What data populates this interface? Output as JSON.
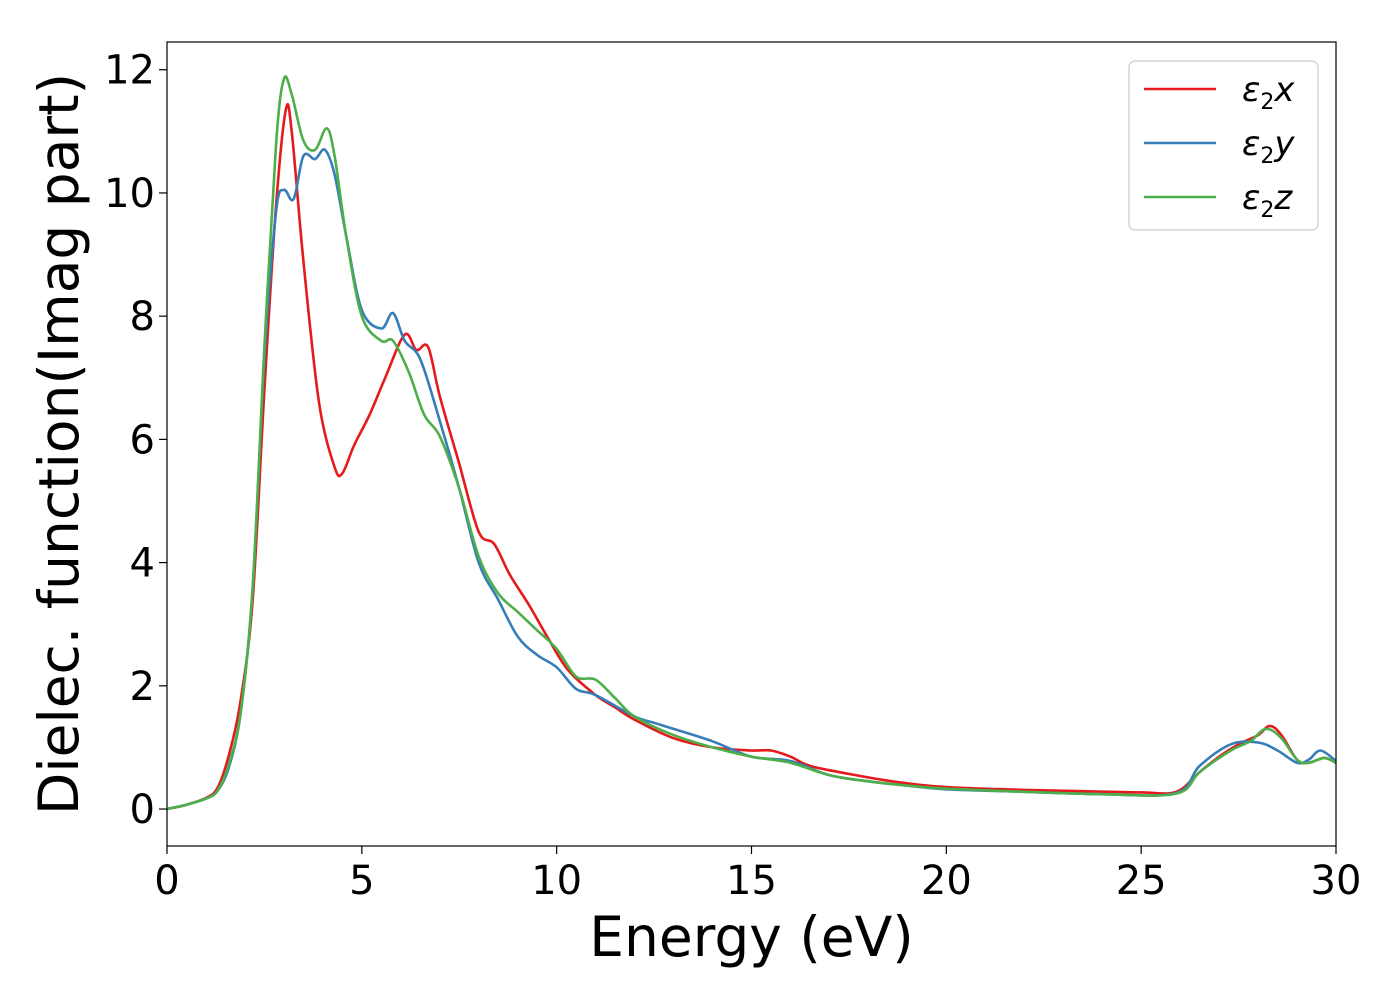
{
  "chart_data": {
    "type": "line",
    "title": "",
    "xlabel": "Energy (eV)",
    "ylabel": "Dielec. function(Imag part)",
    "xlim": [
      0,
      30
    ],
    "ylim": [
      -0.6,
      12.45
    ],
    "xticks": [
      0,
      5,
      10,
      15,
      20,
      25,
      30
    ],
    "yticks": [
      0,
      2,
      4,
      6,
      8,
      10,
      12
    ],
    "xtick_labels": [
      "0",
      "5",
      "10",
      "15",
      "20",
      "25",
      "30"
    ],
    "ytick_labels": [
      "0",
      "2",
      "4",
      "6",
      "8",
      "10",
      "12"
    ],
    "grid": false,
    "legend_position": "top-right",
    "series": [
      {
        "name": "ε2x",
        "legend": {
          "base": "ε",
          "sub": "2",
          "var": "x"
        },
        "color": "#e41a1c",
        "points": [
          [
            0,
            0
          ],
          [
            0.5,
            0.07
          ],
          [
            1.0,
            0.18
          ],
          [
            1.3,
            0.35
          ],
          [
            1.6,
            0.9
          ],
          [
            1.9,
            1.8
          ],
          [
            2.2,
            3.4
          ],
          [
            2.5,
            6.8
          ],
          [
            2.8,
            9.8
          ],
          [
            3.05,
            11.35
          ],
          [
            3.2,
            11.0
          ],
          [
            3.5,
            8.9
          ],
          [
            3.9,
            6.6
          ],
          [
            4.3,
            5.55
          ],
          [
            4.5,
            5.45
          ],
          [
            4.8,
            5.9
          ],
          [
            5.2,
            6.4
          ],
          [
            5.6,
            7.0
          ],
          [
            6.1,
            7.7
          ],
          [
            6.4,
            7.45
          ],
          [
            6.7,
            7.5
          ],
          [
            7.0,
            6.7
          ],
          [
            7.5,
            5.6
          ],
          [
            8.0,
            4.5
          ],
          [
            8.4,
            4.3
          ],
          [
            8.8,
            3.8
          ],
          [
            9.3,
            3.3
          ],
          [
            9.8,
            2.75
          ],
          [
            10.3,
            2.25
          ],
          [
            11.0,
            1.85
          ],
          [
            11.5,
            1.65
          ],
          [
            12.0,
            1.45
          ],
          [
            13.0,
            1.15
          ],
          [
            14.0,
            1.0
          ],
          [
            15.0,
            0.95
          ],
          [
            15.5,
            0.95
          ],
          [
            16.0,
            0.85
          ],
          [
            16.5,
            0.7
          ],
          [
            17.5,
            0.57
          ],
          [
            18.5,
            0.46
          ],
          [
            19.5,
            0.38
          ],
          [
            20.5,
            0.34
          ],
          [
            22.0,
            0.31
          ],
          [
            23.5,
            0.29
          ],
          [
            25.0,
            0.27
          ],
          [
            25.9,
            0.28
          ],
          [
            26.5,
            0.6
          ],
          [
            27.0,
            0.85
          ],
          [
            27.5,
            1.05
          ],
          [
            28.0,
            1.2
          ],
          [
            28.3,
            1.35
          ],
          [
            28.6,
            1.2
          ],
          [
            29.0,
            0.8
          ],
          [
            29.3,
            0.75
          ],
          [
            29.7,
            0.83
          ],
          [
            30.0,
            0.75
          ]
        ]
      },
      {
        "name": "ε2y",
        "legend": {
          "base": "ε",
          "sub": "2",
          "var": "y"
        },
        "color": "#377eb8",
        "points": [
          [
            0,
            0
          ],
          [
            0.5,
            0.07
          ],
          [
            1.0,
            0.17
          ],
          [
            1.3,
            0.3
          ],
          [
            1.6,
            0.7
          ],
          [
            1.9,
            1.6
          ],
          [
            2.2,
            3.6
          ],
          [
            2.5,
            7.3
          ],
          [
            2.8,
            9.7
          ],
          [
            3.0,
            10.05
          ],
          [
            3.25,
            9.9
          ],
          [
            3.5,
            10.6
          ],
          [
            3.8,
            10.55
          ],
          [
            4.05,
            10.7
          ],
          [
            4.3,
            10.3
          ],
          [
            4.6,
            9.3
          ],
          [
            5.0,
            8.1
          ],
          [
            5.5,
            7.8
          ],
          [
            5.8,
            8.05
          ],
          [
            6.1,
            7.6
          ],
          [
            6.5,
            7.3
          ],
          [
            7.0,
            6.3
          ],
          [
            7.5,
            5.2
          ],
          [
            8.0,
            4.0
          ],
          [
            8.5,
            3.4
          ],
          [
            9.0,
            2.8
          ],
          [
            9.5,
            2.5
          ],
          [
            10.0,
            2.3
          ],
          [
            10.5,
            1.95
          ],
          [
            11.0,
            1.85
          ],
          [
            12.0,
            1.5
          ],
          [
            12.5,
            1.4
          ],
          [
            13.0,
            1.3
          ],
          [
            14.0,
            1.1
          ],
          [
            15.0,
            0.85
          ],
          [
            16.0,
            0.78
          ],
          [
            17.0,
            0.55
          ],
          [
            18.0,
            0.45
          ],
          [
            19.0,
            0.38
          ],
          [
            20.0,
            0.32
          ],
          [
            22.0,
            0.28
          ],
          [
            24.0,
            0.24
          ],
          [
            25.9,
            0.26
          ],
          [
            26.5,
            0.7
          ],
          [
            27.3,
            1.05
          ],
          [
            28.0,
            1.08
          ],
          [
            28.5,
            0.95
          ],
          [
            29.0,
            0.75
          ],
          [
            29.3,
            0.8
          ],
          [
            29.6,
            0.95
          ],
          [
            30.0,
            0.78
          ]
        ]
      },
      {
        "name": "ε2z",
        "legend": {
          "base": "ε",
          "sub": "2",
          "var": "z"
        },
        "color": "#4daf4a",
        "points": [
          [
            0,
            0
          ],
          [
            0.5,
            0.07
          ],
          [
            1.0,
            0.17
          ],
          [
            1.3,
            0.3
          ],
          [
            1.6,
            0.75
          ],
          [
            1.9,
            1.6
          ],
          [
            2.2,
            3.6
          ],
          [
            2.5,
            7.5
          ],
          [
            2.8,
            10.8
          ],
          [
            3.0,
            11.85
          ],
          [
            3.2,
            11.6
          ],
          [
            3.5,
            10.85
          ],
          [
            3.8,
            10.7
          ],
          [
            4.1,
            11.05
          ],
          [
            4.3,
            10.6
          ],
          [
            4.6,
            9.3
          ],
          [
            5.0,
            8.0
          ],
          [
            5.5,
            7.6
          ],
          [
            5.8,
            7.6
          ],
          [
            6.2,
            7.1
          ],
          [
            6.6,
            6.4
          ],
          [
            7.0,
            6.05
          ],
          [
            7.5,
            5.2
          ],
          [
            8.0,
            4.1
          ],
          [
            8.5,
            3.5
          ],
          [
            9.0,
            3.2
          ],
          [
            9.5,
            2.9
          ],
          [
            10.0,
            2.6
          ],
          [
            10.5,
            2.15
          ],
          [
            11.0,
            2.1
          ],
          [
            11.5,
            1.8
          ],
          [
            12.0,
            1.5
          ],
          [
            13.0,
            1.2
          ],
          [
            14.0,
            1.0
          ],
          [
            15.0,
            0.85
          ],
          [
            16.0,
            0.75
          ],
          [
            17.0,
            0.55
          ],
          [
            18.0,
            0.45
          ],
          [
            19.0,
            0.38
          ],
          [
            20.0,
            0.33
          ],
          [
            22.0,
            0.28
          ],
          [
            24.0,
            0.24
          ],
          [
            25.9,
            0.25
          ],
          [
            26.5,
            0.6
          ],
          [
            27.3,
            0.95
          ],
          [
            27.8,
            1.1
          ],
          [
            28.2,
            1.3
          ],
          [
            28.6,
            1.15
          ],
          [
            29.0,
            0.8
          ],
          [
            29.3,
            0.75
          ],
          [
            29.7,
            0.83
          ],
          [
            30.0,
            0.75
          ]
        ]
      }
    ]
  }
}
